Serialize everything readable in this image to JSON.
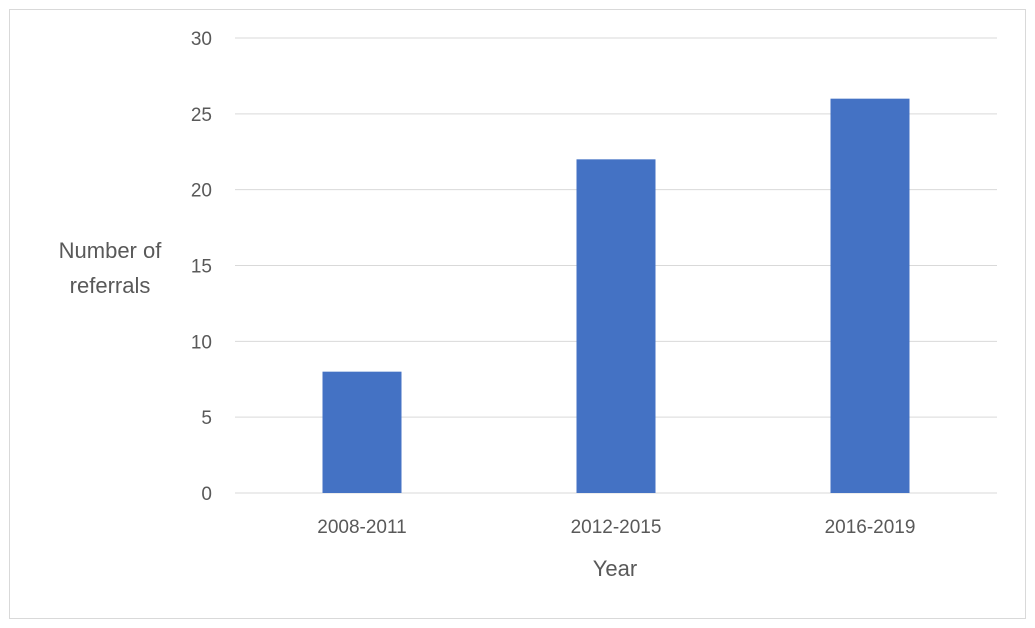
{
  "chart_data": {
    "type": "bar",
    "categories": [
      "2008-2011",
      "2012-2015",
      "2016-2019"
    ],
    "values": [
      8,
      22,
      26
    ],
    "xlabel": "Year",
    "ylabel_lines": [
      "Number of",
      "referrals"
    ],
    "ylim": [
      0,
      30
    ],
    "yticks": [
      0,
      5,
      10,
      15,
      20,
      25,
      30
    ],
    "grid": true,
    "legend": "none",
    "colors": {
      "bar": "#4472c4",
      "grid": "#d9d9d9",
      "text": "#595959"
    }
  }
}
